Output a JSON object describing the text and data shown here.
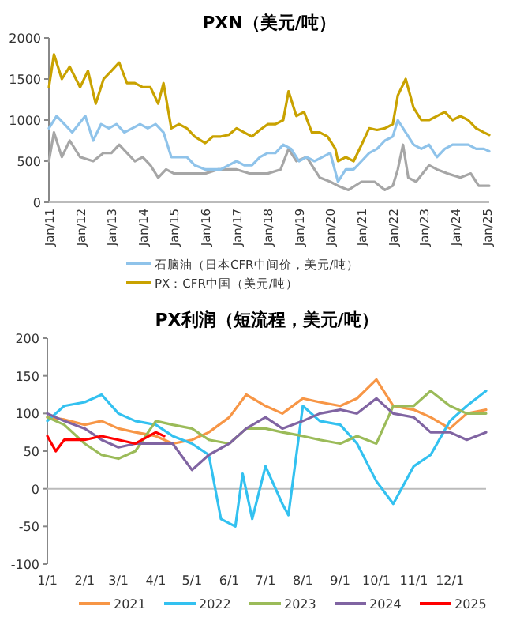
{
  "chart_data": [
    {
      "type": "line",
      "title": "PXN（美元/吨）",
      "legend": "bottom",
      "xlim": [
        "2011-01",
        "2025-02"
      ],
      "ylim": [
        0,
        2000
      ],
      "yticks": [
        0,
        500,
        1000,
        1500,
        2000
      ],
      "xticks": [
        {
          "value": "2011-01",
          "label": "Jan/11"
        },
        {
          "value": "2012-01",
          "label": "Jan/12"
        },
        {
          "value": "2013-01",
          "label": "Jan/13"
        },
        {
          "value": "2014-01",
          "label": "Jan/14"
        },
        {
          "value": "2015-01",
          "label": "Jan/15"
        },
        {
          "value": "2016-01",
          "label": "Jan/16"
        },
        {
          "value": "2017-01",
          "label": "Jan/17"
        },
        {
          "value": "2018-01",
          "label": "Jan/18"
        },
        {
          "value": "2019-01",
          "label": "Jan/19"
        },
        {
          "value": "2020-01",
          "label": "Jan/20"
        },
        {
          "value": "2021-01",
          "label": "Jan/21"
        },
        {
          "value": "2022-01",
          "label": "Jan/22"
        },
        {
          "value": "2023-01",
          "label": "Jan/23"
        },
        {
          "value": "2024-01",
          "label": "Jan/24"
        },
        {
          "value": "2025-01",
          "label": "Jan/25"
        }
      ],
      "series": [
        {
          "color": "#a6a6a6",
          "x": [
            "2011-01",
            "2011-03",
            "2011-06",
            "2011-09",
            "2012-01",
            "2012-06",
            "2012-10",
            "2013-01",
            "2013-04",
            "2013-07",
            "2013-10",
            "2014-01",
            "2014-04",
            "2014-07",
            "2014-10",
            "2015-01",
            "2015-06",
            "2016-01",
            "2016-06",
            "2017-01",
            "2017-06",
            "2018-01",
            "2018-06",
            "2018-09",
            "2018-12",
            "2019-04",
            "2019-09",
            "2020-01",
            "2020-04",
            "2020-08",
            "2021-01",
            "2021-06",
            "2021-10",
            "2022-01",
            "2022-03",
            "2022-05",
            "2022-07",
            "2022-10",
            "2023-03",
            "2023-06",
            "2023-10",
            "2024-03",
            "2024-07",
            "2024-10",
            "2025-02"
          ],
          "values": [
            500,
            850,
            550,
            750,
            550,
            500,
            600,
            600,
            700,
            600,
            500,
            550,
            450,
            300,
            400,
            350,
            350,
            350,
            400,
            400,
            350,
            350,
            400,
            650,
            500,
            550,
            300,
            250,
            200,
            150,
            250,
            250,
            150,
            200,
            400,
            700,
            300,
            250,
            450,
            400,
            350,
            300,
            350,
            200,
            200
          ]
        },
        {
          "name": "石脑油（日本CFR中间价，美元/吨）",
          "color": "#8fc3ea",
          "x": [
            "2011-01",
            "2011-04",
            "2011-07",
            "2011-10",
            "2012-03",
            "2012-06",
            "2012-09",
            "2012-12",
            "2013-03",
            "2013-06",
            "2013-09",
            "2013-12",
            "2014-03",
            "2014-06",
            "2014-09",
            "2014-12",
            "2015-03",
            "2015-06",
            "2015-09",
            "2016-01",
            "2016-04",
            "2016-07",
            "2016-10",
            "2017-01",
            "2017-04",
            "2017-07",
            "2017-10",
            "2018-01",
            "2018-04",
            "2018-07",
            "2018-10",
            "2019-01",
            "2019-04",
            "2019-07",
            "2019-10",
            "2020-01",
            "2020-04",
            "2020-07",
            "2020-10",
            "2021-01",
            "2021-04",
            "2021-07",
            "2021-10",
            "2022-01",
            "2022-03",
            "2022-06",
            "2022-09",
            "2022-12",
            "2023-03",
            "2023-06",
            "2023-09",
            "2023-12",
            "2024-03",
            "2024-06",
            "2024-09",
            "2024-12",
            "2025-02"
          ],
          "values": [
            900,
            1050,
            950,
            850,
            1050,
            750,
            950,
            900,
            950,
            850,
            900,
            950,
            900,
            950,
            850,
            550,
            550,
            550,
            450,
            400,
            400,
            400,
            450,
            500,
            450,
            450,
            550,
            600,
            600,
            700,
            650,
            500,
            550,
            500,
            550,
            600,
            250,
            400,
            400,
            500,
            600,
            650,
            750,
            800,
            1000,
            850,
            700,
            650,
            700,
            550,
            650,
            700,
            700,
            700,
            650,
            650,
            620
          ]
        },
        {
          "name": "PX：CFR中国（美元/吨）",
          "color": "#c9a200",
          "x": [
            "2011-01",
            "2011-03",
            "2011-06",
            "2011-09",
            "2012-01",
            "2012-04",
            "2012-07",
            "2012-10",
            "2013-01",
            "2013-04",
            "2013-07",
            "2013-10",
            "2014-01",
            "2014-04",
            "2014-07",
            "2014-09",
            "2014-12",
            "2015-03",
            "2015-06",
            "2015-09",
            "2016-01",
            "2016-04",
            "2016-07",
            "2016-10",
            "2017-01",
            "2017-04",
            "2017-07",
            "2017-10",
            "2018-01",
            "2018-04",
            "2018-07",
            "2018-09",
            "2018-12",
            "2019-03",
            "2019-06",
            "2019-09",
            "2019-12",
            "2020-03",
            "2020-04",
            "2020-07",
            "2020-10",
            "2021-01",
            "2021-04",
            "2021-07",
            "2021-10",
            "2022-01",
            "2022-03",
            "2022-06",
            "2022-09",
            "2022-12",
            "2023-03",
            "2023-06",
            "2023-09",
            "2023-12",
            "2024-03",
            "2024-06",
            "2024-09",
            "2024-12",
            "2025-02"
          ],
          "values": [
            1400,
            1800,
            1500,
            1650,
            1400,
            1600,
            1200,
            1500,
            1600,
            1700,
            1450,
            1450,
            1400,
            1400,
            1200,
            1450,
            900,
            950,
            900,
            800,
            720,
            800,
            800,
            820,
            900,
            850,
            800,
            880,
            950,
            950,
            1000,
            1350,
            1050,
            1100,
            850,
            850,
            800,
            650,
            500,
            550,
            500,
            700,
            900,
            880,
            900,
            950,
            1300,
            1500,
            1150,
            1000,
            1000,
            1050,
            1100,
            1000,
            1050,
            1000,
            900,
            850,
            820
          ]
        }
      ]
    },
    {
      "type": "line",
      "title": "PX利润（短流程，美元/吨）",
      "legend": "bottom",
      "xlim": [
        "--01-01",
        "--12-31"
      ],
      "ylim": [
        -100,
        200
      ],
      "yticks": [
        -100,
        -50,
        0,
        50,
        100,
        150,
        200
      ],
      "xticks": [
        {
          "value": "--01-01",
          "label": "1/1"
        },
        {
          "value": "--02-01",
          "label": "2/1"
        },
        {
          "value": "--03-01",
          "label": "3/1"
        },
        {
          "value": "--04-01",
          "label": "4/1"
        },
        {
          "value": "--05-01",
          "label": "5/1"
        },
        {
          "value": "--06-01",
          "label": "6/1"
        },
        {
          "value": "--07-01",
          "label": "7/1"
        },
        {
          "value": "--08-01",
          "label": "8/1"
        },
        {
          "value": "--09-01",
          "label": "9/1"
        },
        {
          "value": "--10-01",
          "label": "10/1"
        },
        {
          "value": "--11-01",
          "label": "11/1"
        },
        {
          "value": "--12-01",
          "label": "12/1"
        }
      ],
      "series": [
        {
          "name": "2021",
          "color": "#f79646",
          "x": [
            "--01-01",
            "--01-15",
            "--02-01",
            "--02-15",
            "--03-01",
            "--03-15",
            "--04-01",
            "--04-15",
            "--05-01",
            "--05-15",
            "--06-01",
            "--06-15",
            "--07-01",
            "--07-15",
            "--08-01",
            "--08-15",
            "--09-01",
            "--09-15",
            "--10-01",
            "--10-15",
            "--11-01",
            "--11-15",
            "--12-01",
            "--12-15",
            "--12-31"
          ],
          "values": [
            95,
            92,
            85,
            90,
            80,
            75,
            70,
            60,
            65,
            75,
            95,
            125,
            110,
            100,
            120,
            115,
            110,
            120,
            145,
            110,
            105,
            95,
            80,
            100,
            105
          ]
        },
        {
          "name": "2022",
          "color": "#33c1f0",
          "x": [
            "--01-01",
            "--01-15",
            "--02-01",
            "--02-15",
            "--03-01",
            "--03-15",
            "--04-01",
            "--04-15",
            "--05-01",
            "--05-15",
            "--05-25",
            "--06-06",
            "--06-12",
            "--06-20",
            "--07-01",
            "--07-15",
            "--07-20",
            "--08-01",
            "--08-15",
            "--09-01",
            "--09-15",
            "--10-01",
            "--10-15",
            "--11-01",
            "--11-15",
            "--12-01",
            "--12-15",
            "--12-31"
          ],
          "values": [
            90,
            110,
            115,
            125,
            100,
            90,
            85,
            70,
            60,
            45,
            -40,
            -50,
            20,
            -40,
            30,
            -20,
            -35,
            110,
            90,
            85,
            60,
            10,
            -20,
            30,
            45,
            90,
            110,
            130
          ]
        },
        {
          "name": "2023",
          "color": "#9bbb59",
          "x": [
            "--01-01",
            "--01-15",
            "--02-01",
            "--02-15",
            "--03-01",
            "--03-15",
            "--04-01",
            "--04-15",
            "--05-01",
            "--05-15",
            "--06-01",
            "--06-15",
            "--07-01",
            "--07-15",
            "--08-01",
            "--08-15",
            "--09-01",
            "--09-15",
            "--10-01",
            "--10-15",
            "--11-01",
            "--11-15",
            "--12-01",
            "--12-15",
            "--12-31"
          ],
          "values": [
            95,
            85,
            60,
            45,
            40,
            50,
            90,
            85,
            80,
            65,
            60,
            80,
            80,
            75,
            70,
            65,
            60,
            70,
            60,
            110,
            110,
            130,
            110,
            100,
            100
          ]
        },
        {
          "name": "2024",
          "color": "#8064a2",
          "x": [
            "--01-01",
            "--01-15",
            "--02-01",
            "--02-15",
            "--03-01",
            "--03-15",
            "--04-01",
            "--04-15",
            "--05-01",
            "--05-15",
            "--06-01",
            "--06-15",
            "--07-01",
            "--07-15",
            "--08-01",
            "--08-15",
            "--09-01",
            "--09-15",
            "--10-01",
            "--10-15",
            "--11-01",
            "--11-15",
            "--12-01",
            "--12-15",
            "--12-31"
          ],
          "values": [
            100,
            90,
            80,
            65,
            55,
            60,
            60,
            60,
            25,
            45,
            60,
            80,
            95,
            80,
            90,
            100,
            105,
            100,
            120,
            100,
            95,
            75,
            75,
            65,
            75
          ]
        },
        {
          "name": "2025",
          "color": "#ff0000",
          "x": [
            "--01-01",
            "--01-08",
            "--01-15",
            "--02-01",
            "--02-15",
            "--03-01",
            "--03-15",
            "--04-01",
            "--04-08"
          ],
          "values": [
            70,
            50,
            65,
            65,
            70,
            65,
            60,
            75,
            70
          ]
        }
      ]
    }
  ]
}
